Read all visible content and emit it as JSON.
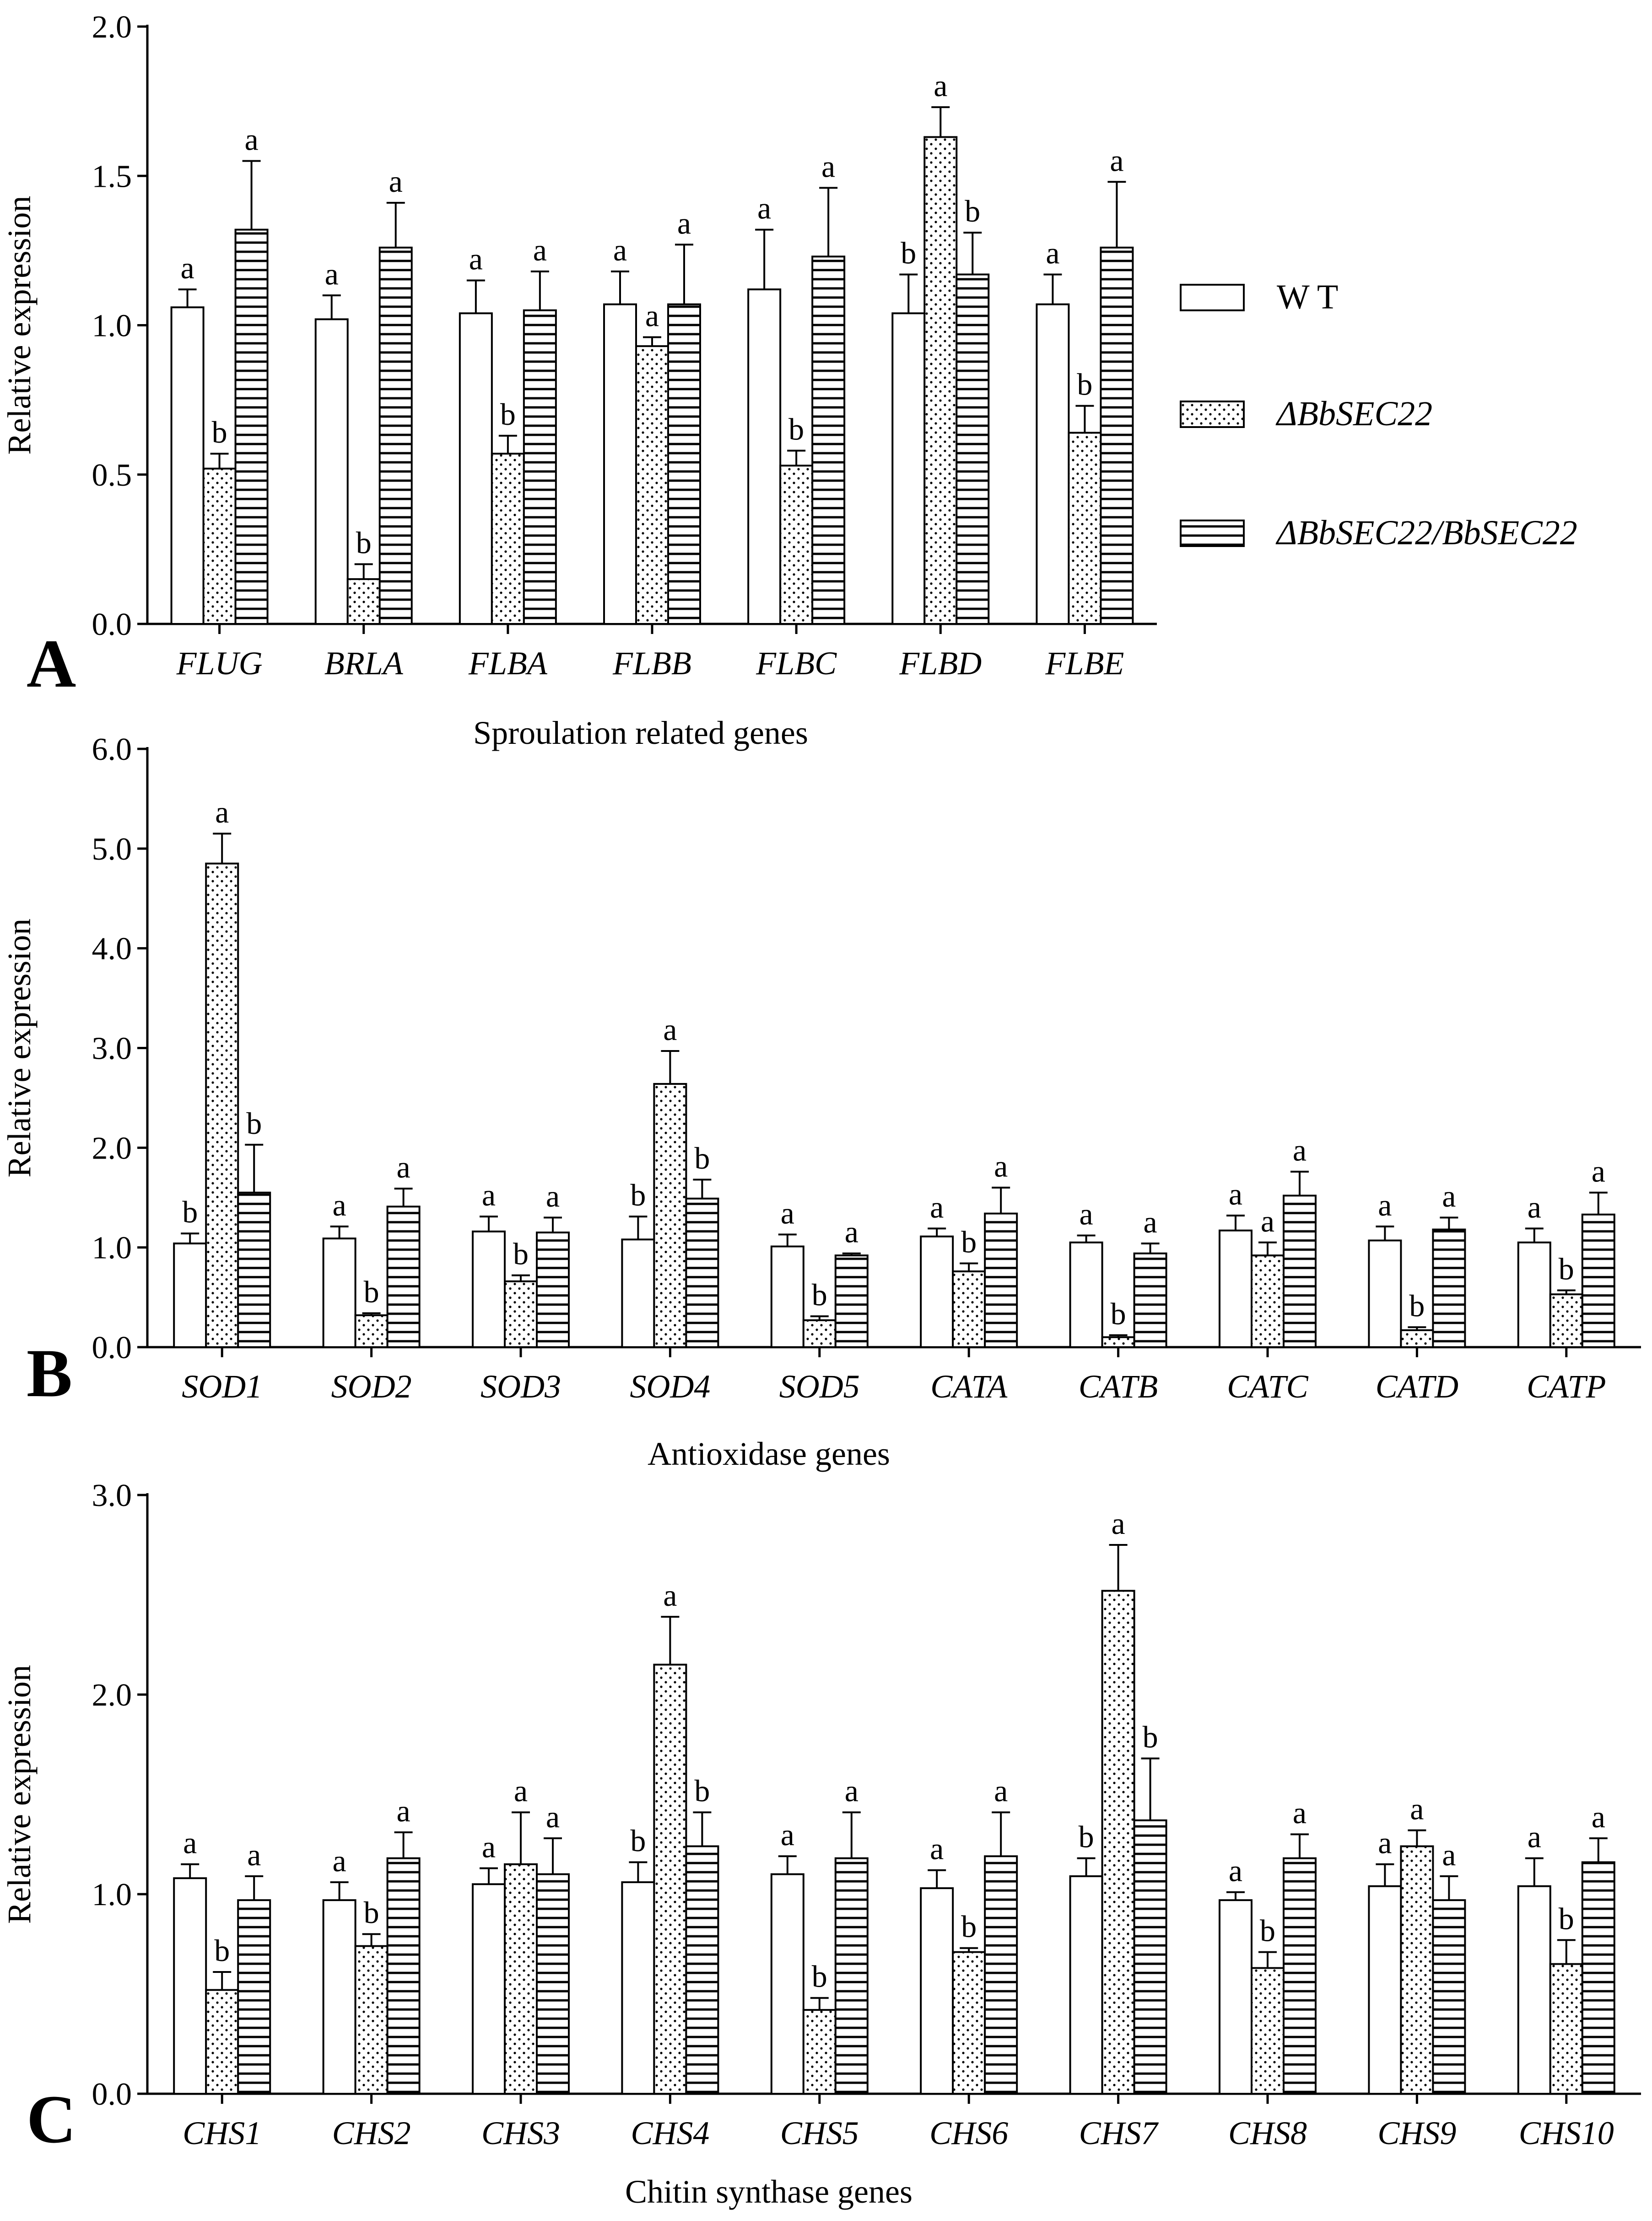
{
  "series_names": [
    "WT",
    "ΔBbSEC22",
    "ΔBbSEC22/BbSEC22"
  ],
  "legend": {
    "entries": [
      {
        "label": "W T",
        "italic": false,
        "pattern": "open"
      },
      {
        "label": "ΔBbSEC22",
        "italic": true,
        "pattern": "dots"
      },
      {
        "label": "ΔBbSEC22/BbSEC22",
        "italic": true,
        "pattern": "hlines"
      }
    ]
  },
  "chart_data": [
    {
      "type": "bar",
      "panel_label": "A",
      "xlabel": "Sproulation related genes",
      "ylabel": "Relative expression",
      "ylim": [
        0,
        2.0
      ],
      "yticks": [
        0,
        0.5,
        1.0,
        1.5,
        2.0
      ],
      "ytick_labels": [
        "0.0",
        "0.5",
        "1.0",
        "1.5",
        "2.0"
      ],
      "categories": [
        "FLUG",
        "BRLA",
        "FLBA",
        "FLBB",
        "FLBC",
        "FLBD",
        "FLBE"
      ],
      "series": [
        {
          "name": "WT",
          "values": [
            1.06,
            1.02,
            1.04,
            1.07,
            1.12,
            1.04,
            1.07
          ],
          "errors": [
            0.06,
            0.08,
            0.11,
            0.11,
            0.2,
            0.13,
            0.1
          ],
          "letters": [
            "a",
            "a",
            "a",
            "a",
            "a",
            "b",
            "a"
          ]
        },
        {
          "name": "ΔBbSEC22",
          "values": [
            0.52,
            0.15,
            0.57,
            0.93,
            0.53,
            1.63,
            0.64
          ],
          "errors": [
            0.05,
            0.05,
            0.06,
            0.03,
            0.05,
            0.1,
            0.09
          ],
          "letters": [
            "b",
            "b",
            "b",
            "a",
            "b",
            "a",
            "b"
          ]
        },
        {
          "name": "ΔBbSEC22/BbSEC22",
          "values": [
            1.32,
            1.26,
            1.05,
            1.07,
            1.23,
            1.17,
            1.26
          ],
          "errors": [
            0.23,
            0.15,
            0.13,
            0.2,
            0.23,
            0.14,
            0.22
          ],
          "letters": [
            "a",
            "a",
            "a",
            "a",
            "a",
            "b",
            "a"
          ]
        }
      ]
    },
    {
      "type": "bar",
      "panel_label": "B",
      "xlabel": "Antioxidase genes",
      "ylabel": "Relative expression",
      "ylim": [
        0,
        6.0
      ],
      "yticks": [
        0,
        1,
        2,
        3,
        4,
        5,
        6
      ],
      "ytick_labels": [
        "0.0",
        "1.0",
        "2.0",
        "3.0",
        "4.0",
        "5.0",
        "6.0"
      ],
      "categories": [
        "SOD1",
        "SOD2",
        "SOD3",
        "SOD4",
        "SOD5",
        "CATA",
        "CATB",
        "CATC",
        "CATD",
        "CATP"
      ],
      "series": [
        {
          "name": "WT",
          "values": [
            1.04,
            1.09,
            1.16,
            1.08,
            1.01,
            1.11,
            1.05,
            1.17,
            1.07,
            1.05
          ],
          "errors": [
            0.1,
            0.12,
            0.15,
            0.23,
            0.12,
            0.08,
            0.07,
            0.15,
            0.14,
            0.14
          ],
          "letters": [
            "b",
            "a",
            "a",
            "b",
            "a",
            "a",
            "a",
            "a",
            "a",
            "a"
          ]
        },
        {
          "name": "ΔBbSEC22",
          "values": [
            4.85,
            0.32,
            0.66,
            2.64,
            0.27,
            0.76,
            0.1,
            0.92,
            0.17,
            0.53
          ],
          "errors": [
            0.3,
            0.02,
            0.06,
            0.33,
            0.04,
            0.08,
            0.02,
            0.13,
            0.03,
            0.04
          ],
          "letters": [
            "a",
            "b",
            "b",
            "a",
            "b",
            "b",
            "b",
            "a",
            "b",
            "b"
          ]
        },
        {
          "name": "ΔBbSEC22/BbSEC22",
          "values": [
            1.55,
            1.41,
            1.15,
            1.49,
            0.92,
            1.34,
            0.94,
            1.52,
            1.18,
            1.33
          ],
          "errors": [
            0.48,
            0.18,
            0.15,
            0.19,
            0.02,
            0.26,
            0.1,
            0.24,
            0.12,
            0.22
          ],
          "letters": [
            "b",
            "a",
            "a",
            "b",
            "a",
            "a",
            "a",
            "a",
            "a",
            "a"
          ]
        }
      ]
    },
    {
      "type": "bar",
      "panel_label": "C",
      "xlabel": "Chitin synthase genes",
      "ylabel": "Relative expression",
      "ylim": [
        0,
        3.0
      ],
      "yticks": [
        0,
        1,
        2,
        3
      ],
      "ytick_labels": [
        "0.0",
        "1.0",
        "2.0",
        "3.0"
      ],
      "categories": [
        "CHS1",
        "CHS2",
        "CHS3",
        "CHS4",
        "CHS5",
        "CHS6",
        "CHS7",
        "CHS8",
        "CHS9",
        "CHS10"
      ],
      "series": [
        {
          "name": "WT",
          "values": [
            1.08,
            0.97,
            1.05,
            1.06,
            1.1,
            1.03,
            1.09,
            0.97,
            1.04,
            1.04
          ],
          "errors": [
            0.07,
            0.09,
            0.08,
            0.1,
            0.09,
            0.09,
            0.09,
            0.04,
            0.11,
            0.14
          ],
          "letters": [
            "a",
            "a",
            "a",
            "b",
            "a",
            "a",
            "b",
            "a",
            "a",
            "a"
          ]
        },
        {
          "name": "ΔBbSEC22",
          "values": [
            0.52,
            0.74,
            1.15,
            2.15,
            0.42,
            0.71,
            2.52,
            0.63,
            1.24,
            0.65
          ],
          "errors": [
            0.09,
            0.06,
            0.26,
            0.24,
            0.06,
            0.02,
            0.23,
            0.08,
            0.08,
            0.12
          ],
          "letters": [
            "b",
            "b",
            "a",
            "a",
            "b",
            "b",
            "a",
            "b",
            "a",
            "b"
          ]
        },
        {
          "name": "ΔBbSEC22/BbSEC22",
          "values": [
            0.97,
            1.18,
            1.1,
            1.24,
            1.18,
            1.19,
            1.37,
            1.18,
            0.97,
            1.16
          ],
          "errors": [
            0.12,
            0.13,
            0.18,
            0.17,
            0.23,
            0.22,
            0.31,
            0.12,
            0.12,
            0.12
          ],
          "letters": [
            "a",
            "a",
            "a",
            "b",
            "a",
            "a",
            "b",
            "a",
            "a",
            "a"
          ]
        }
      ]
    }
  ]
}
